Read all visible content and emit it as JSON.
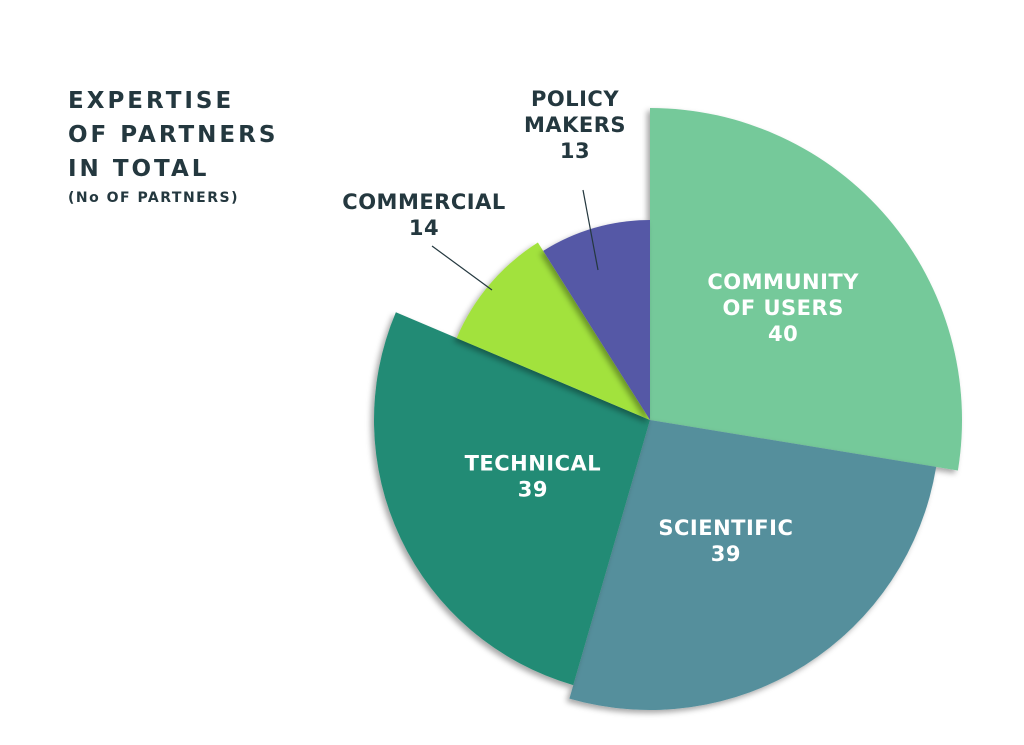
{
  "chart_data": {
    "type": "pie",
    "title": [
      "EXPERTISE",
      "OF PARTNERS",
      "IN TOTAL"
    ],
    "subtitle": "(No OF PARTNERS)",
    "slices": [
      {
        "label": "COMMUNITY OF USERS",
        "label_lines": [
          "COMMUNITY",
          "OF USERS"
        ],
        "value": 40,
        "color": "#74c99a",
        "label_color": "#ffffff"
      },
      {
        "label": "SCIENTIFIC",
        "label_lines": [
          "SCIENTIFIC"
        ],
        "value": 39,
        "color": "#558f9c",
        "label_color": "#ffffff"
      },
      {
        "label": "TECHNICAL",
        "label_lines": [
          "TECHNICAL"
        ],
        "value": 39,
        "color": "#218b74",
        "label_color": "#ffffff"
      },
      {
        "label": "COMMERCIAL",
        "label_lines": [
          "COMMERCIAL"
        ],
        "value": 14,
        "color": "#a2e23e",
        "label_color": "#24383f"
      },
      {
        "label": "POLICY MAKERS",
        "label_lines": [
          "POLICY",
          "MAKERS"
        ],
        "value": 13,
        "color": "#5558a6",
        "label_color": "#24383f"
      }
    ]
  }
}
